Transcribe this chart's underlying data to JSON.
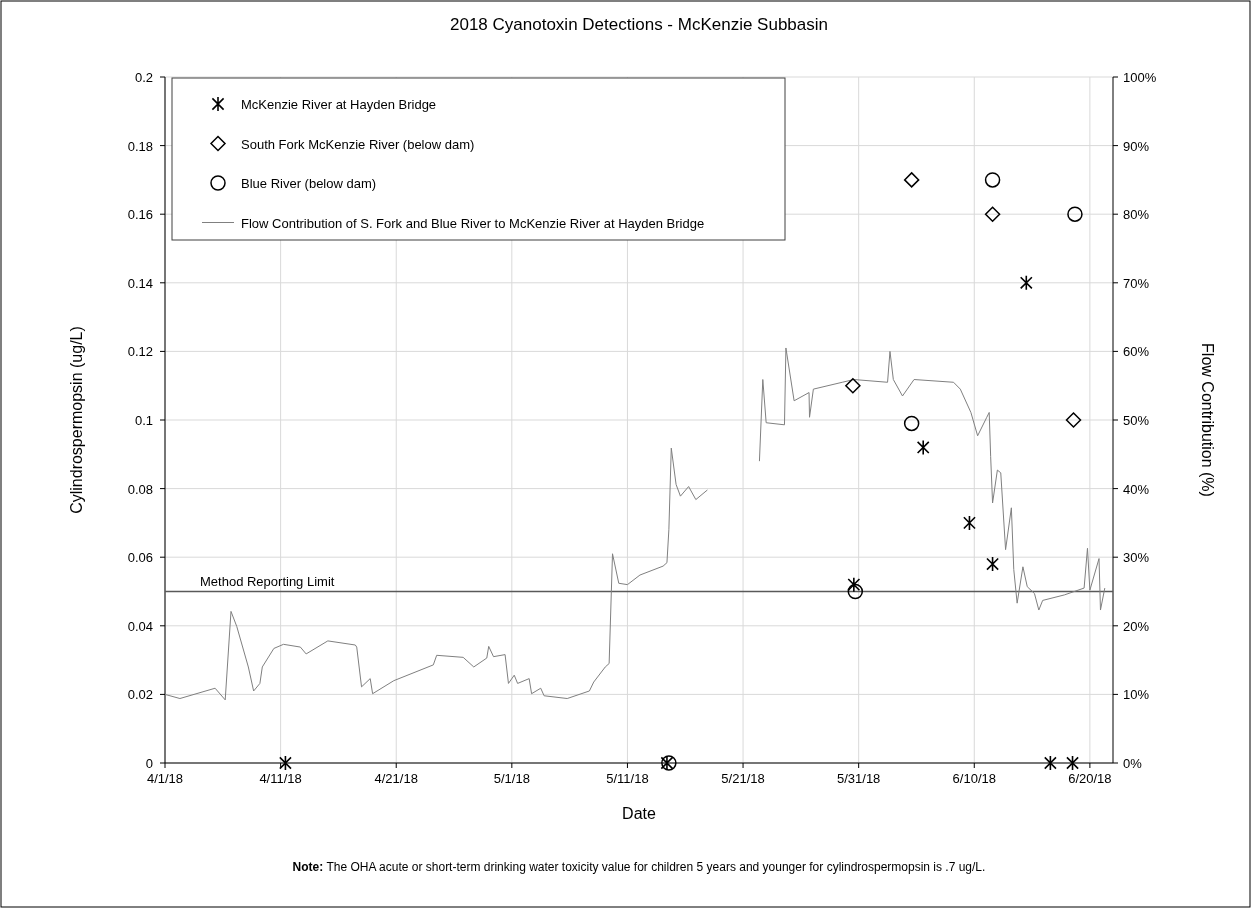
{
  "chart_data": {
    "type": "scatter",
    "title": "2018 Cyanotoxin Detections - McKenzie Subbasin",
    "xlabel": "Date",
    "ylabel": "Cylindrospermopsin  (ug/L)",
    "y2label": "Flow Contribution (%)",
    "annotations": [
      "Note: The OHA acute or short-term drinking water toxicity value for children 5 years and younger for cylindrospermopsin  is .7 ug/L."
    ],
    "xlim": [
      "2018-04-01",
      "2018-06-22"
    ],
    "xticks": [
      {
        "value": "2018-04-01",
        "label": "4/1/18"
      },
      {
        "value": "2018-04-11",
        "label": "4/11/18"
      },
      {
        "value": "2018-04-21",
        "label": "4/21/18"
      },
      {
        "value": "2018-05-01",
        "label": "5/1/18"
      },
      {
        "value": "2018-05-11",
        "label": "5/11/18"
      },
      {
        "value": "2018-05-21",
        "label": "5/21/18"
      },
      {
        "value": "2018-05-31",
        "label": "5/31/18"
      },
      {
        "value": "2018-06-10",
        "label": "6/10/18"
      },
      {
        "value": "2018-06-20",
        "label": "6/20/18"
      }
    ],
    "ylim": [
      0,
      0.2
    ],
    "yticks": [
      0,
      0.02,
      0.04,
      0.06,
      0.08,
      0.1,
      0.12,
      0.14,
      0.16,
      0.18,
      0.2
    ],
    "y2lim": [
      0,
      100
    ],
    "y2ticks": [
      {
        "value": 0,
        "label": "0%"
      },
      {
        "value": 10,
        "label": "10%"
      },
      {
        "value": 20,
        "label": "20%"
      },
      {
        "value": 30,
        "label": "30%"
      },
      {
        "value": 40,
        "label": "40%"
      },
      {
        "value": 50,
        "label": "50%"
      },
      {
        "value": 60,
        "label": "60%"
      },
      {
        "value": 70,
        "label": "70%"
      },
      {
        "value": 80,
        "label": "80%"
      },
      {
        "value": 90,
        "label": "90%"
      },
      {
        "value": 100,
        "label": "100%"
      }
    ],
    "grid": true,
    "legend": "top left",
    "ref_lines": [
      {
        "axis": "y",
        "value": 0.05,
        "label": "Method Reporting Limit",
        "color": "#595959"
      }
    ],
    "series": [
      {
        "name": "McKenzie River at Hayden Bridge",
        "marker": "cross",
        "color": "#000000",
        "x": [
          "2018-04-11T10:00",
          "2018-05-14T10:00",
          "2018-05-30T14:00",
          "2018-06-05T14:00",
          "2018-06-09T14:00",
          "2018-06-11T14:00",
          "2018-06-14T12:00",
          "2018-06-16T14:00",
          "2018-06-18T12:00"
        ],
        "values": [
          0,
          0,
          0.052,
          0.092,
          0.07,
          0.058,
          0.14,
          0,
          0
        ]
      },
      {
        "name": "South Fork McKenzie River (below dam)",
        "marker": "diamond",
        "color": "#000000",
        "x": [
          "2018-05-30T12:00",
          "2018-06-04T14:00",
          "2018-06-11T14:00",
          "2018-06-18T14:00"
        ],
        "values": [
          0.11,
          0.17,
          0.16,
          0.1
        ]
      },
      {
        "name": "Blue River (below dam)",
        "marker": "circle",
        "color": "#000000",
        "x": [
          "2018-05-14T14:00",
          "2018-05-30T17:00",
          "2018-06-04T14:00",
          "2018-06-11T14:00",
          "2018-06-18T17:00"
        ],
        "values": [
          0,
          0.05,
          0.099,
          0.17,
          0.16
        ]
      },
      {
        "name": "Flow Contribution of S. Fork and Blue River to McKenzie River at Hayden Bridge",
        "type": "line",
        "axis": "y2",
        "marker": "none",
        "line_style": "solid",
        "color": "#808080",
        "x": [
          "2018-04-01T00:00",
          "2018-04-02T07:00",
          "2018-04-05T08:00",
          "2018-04-06T05:00",
          "2018-04-06T17:00",
          "2018-04-07T05:00",
          "2018-04-08T05:00",
          "2018-04-08T16:00",
          "2018-04-09T05:00",
          "2018-04-09T10:00",
          "2018-04-10T10:00",
          "2018-04-11T06:00",
          "2018-04-12T17:00",
          "2018-04-13T05:00",
          "2018-04-15T02:00",
          "2018-04-17T11:00",
          "2018-04-17T14:00",
          "2018-04-18T00:00",
          "2018-04-18T18:00",
          "2018-04-18T23:00",
          "2018-04-20T19:00",
          "2018-04-24T05:00",
          "2018-04-24T12:00",
          "2018-04-26T19:00",
          "2018-04-27T17:00",
          "2018-04-28T20:00",
          "2018-04-29T00:00",
          "2018-04-29T10:00",
          "2018-04-30T10:00",
          "2018-04-30T17:00",
          "2018-05-01T05:00",
          "2018-05-01T12:00",
          "2018-05-02T12:00",
          "2018-05-02T17:00",
          "2018-05-03T12:00",
          "2018-05-03T19:00",
          "2018-05-05T19:00",
          "2018-05-07T17:00",
          "2018-05-08T02:00",
          "2018-05-09T02:00",
          "2018-05-09T10:00",
          "2018-05-09T17:00",
          "2018-05-10T06:00",
          "2018-05-11T00:00",
          "2018-05-12T02:00",
          "2018-05-14T02:00",
          "2018-05-14T10:00",
          "2018-05-14T14:00",
          "2018-05-14T19:00",
          "2018-05-15T05:00",
          "2018-05-15T14:00",
          "2018-05-16T07:00",
          "2018-05-16T22:00",
          "2018-05-17T22:00",
          "2018-05-20T00:00",
          "2018-05-22T10:00",
          "2018-05-22T17:00",
          "2018-05-23T00:00",
          "2018-05-24T14:00",
          "2018-05-24T17:00",
          "2018-05-25T10:00",
          "2018-05-26T17:00",
          "2018-05-26T18:00",
          "2018-05-27T02:00",
          "2018-05-29T14:00",
          "2018-05-30T14:00",
          "2018-06-02T12:00",
          "2018-06-02T17:00",
          "2018-06-03T00:00",
          "2018-06-03T19:00",
          "2018-06-04T19:00",
          "2018-06-08T05:00",
          "2018-06-08T19:00",
          "2018-06-09T17:00",
          "2018-06-10T07:00",
          "2018-06-11T02:00",
          "2018-06-11T07:00",
          "2018-06-11T10:00",
          "2018-06-11T14:00",
          "2018-06-12T00:00",
          "2018-06-12T07:00",
          "2018-06-12T17:00",
          "2018-06-13T05:00",
          "2018-06-13T10:00",
          "2018-06-13T17:00",
          "2018-06-14T05:00",
          "2018-06-14T14:00",
          "2018-06-15T05:00",
          "2018-06-15T14:00",
          "2018-06-15T22:00",
          "2018-06-17T19:00",
          "2018-06-19T12:00",
          "2018-06-19T19:00",
          "2018-06-20T00:00",
          "2018-06-20T19:00",
          "2018-06-20T22:00",
          "2018-06-21T07:00"
        ],
        "values": [
          10.0,
          9.4,
          10.9,
          9.2,
          22.1,
          19.9,
          14.0,
          10.5,
          11.6,
          14.0,
          16.7,
          17.3,
          16.9,
          15.9,
          17.8,
          17.2,
          16.9,
          11.1,
          12.3,
          10.1,
          12.0,
          14.3,
          15.7,
          15.4,
          14.0,
          15.3,
          17.0,
          15.5,
          15.8,
          11.6,
          12.8,
          11.6,
          12.3,
          10.1,
          10.9,
          9.8,
          9.4,
          10.5,
          11.8,
          14.0,
          14.5,
          30.5,
          26.2,
          26.0,
          27.4,
          28.7,
          29.2,
          34.0,
          45.9,
          40.6,
          38.9,
          40.3,
          38.4,
          39.8,
          null,
          44.0,
          55.9,
          49.6,
          49.3,
          60.5,
          52.8,
          54.0,
          50.4,
          54.5,
          55.5,
          55.9,
          55.5,
          60.0,
          55.9,
          53.5,
          55.9,
          55.5,
          54.5,
          51.1,
          47.7,
          50.4,
          51.1,
          44.7,
          37.9,
          42.7,
          42.3,
          31.1,
          37.2,
          28.2,
          23.3,
          28.6,
          25.7,
          24.7,
          22.3,
          23.7,
          24.5,
          25.5,
          31.3,
          25.2,
          29.8,
          22.3,
          25.5
        ]
      }
    ]
  }
}
